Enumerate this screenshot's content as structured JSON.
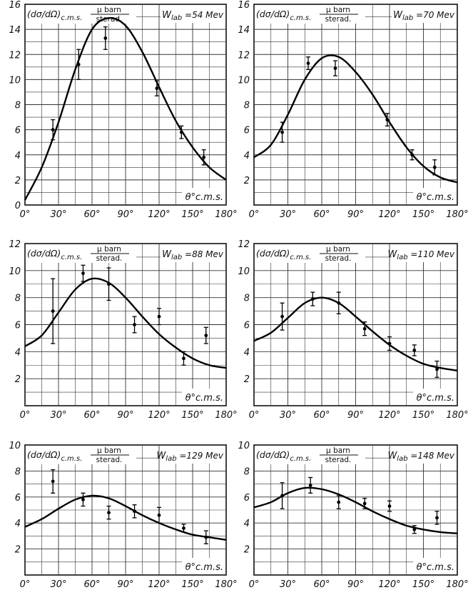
{
  "chart_data": [
    {
      "type": "scatter",
      "energy_label": "W",
      "energy_sub": "lab",
      "energy_value": "=54 Mev",
      "ylabel_prefix": "(dσ/dΩ)",
      "ylabel_sub": "c.m.s.",
      "unit_num": "μ barn",
      "unit_den": "sterad.",
      "xlabel": "θ°c.m.s.",
      "xlim": [
        0,
        180
      ],
      "ylim": [
        0,
        16
      ],
      "xticks": [
        0,
        30,
        60,
        90,
        120,
        150,
        180
      ],
      "xtick_labels": [
        "0°",
        "30°",
        "60°",
        "90°",
        "120°",
        "150°",
        "180°"
      ],
      "yticks": [
        0,
        2,
        4,
        6,
        8,
        10,
        12,
        14,
        16
      ],
      "grid": true,
      "points": [
        {
          "x": 25,
          "y": 6.0,
          "err": 0.8
        },
        {
          "x": 48,
          "y": 11.2,
          "err": 1.2
        },
        {
          "x": 72,
          "y": 13.3,
          "err": 0.9
        },
        {
          "x": 118,
          "y": 9.3,
          "err": 0.6
        },
        {
          "x": 140,
          "y": 5.8,
          "err": 0.5
        },
        {
          "x": 160,
          "y": 3.8,
          "err": 0.6
        }
      ],
      "curve": {
        "x": [
          0,
          15,
          30,
          45,
          60,
          75,
          90,
          105,
          120,
          135,
          150,
          165,
          180
        ],
        "y": [
          0.4,
          3.0,
          6.6,
          10.8,
          14.0,
          14.9,
          14.3,
          12.2,
          9.4,
          6.7,
          4.6,
          3.0,
          2.0
        ]
      }
    },
    {
      "type": "scatter",
      "energy_label": "W",
      "energy_sub": "lab",
      "energy_value": "=70 Mev",
      "ylabel_prefix": "(dσ/dΩ)",
      "ylabel_sub": "c.m.s.",
      "unit_num": "μ barn",
      "unit_den": "sterad.",
      "xlabel": "θ°c.m.s.",
      "xlim": [
        0,
        180
      ],
      "ylim": [
        0,
        16
      ],
      "xticks": [
        0,
        30,
        60,
        90,
        120,
        150,
        180
      ],
      "xtick_labels": [
        "0°",
        "30°",
        "60°",
        "90°",
        "120°",
        "150°",
        "180°"
      ],
      "yticks": [
        2,
        4,
        6,
        8,
        10,
        12,
        14,
        16
      ],
      "grid": true,
      "points": [
        {
          "x": 25,
          "y": 5.8,
          "err": 0.8
        },
        {
          "x": 48,
          "y": 11.3,
          "err": 0.5
        },
        {
          "x": 72,
          "y": 10.9,
          "err": 0.6
        },
        {
          "x": 118,
          "y": 6.8,
          "err": 0.5
        },
        {
          "x": 140,
          "y": 4.0,
          "err": 0.4
        },
        {
          "x": 160,
          "y": 3.0,
          "err": 0.6
        }
      ],
      "curve": {
        "x": [
          0,
          15,
          30,
          45,
          60,
          75,
          90,
          105,
          120,
          135,
          150,
          165,
          180
        ],
        "y": [
          3.8,
          4.8,
          7.2,
          10.0,
          11.7,
          11.8,
          10.6,
          8.8,
          6.6,
          4.6,
          3.1,
          2.2,
          1.8
        ]
      }
    },
    {
      "type": "scatter",
      "energy_label": "W",
      "energy_sub": "lab",
      "energy_value": "=88 Mev",
      "ylabel_prefix": "(dσ/dΩ)",
      "ylabel_sub": "c.m.s.",
      "unit_num": "μ barn",
      "unit_den": "sterad.",
      "xlabel": "θ°c.m.s.",
      "xlim": [
        0,
        180
      ],
      "ylim": [
        0,
        12
      ],
      "xticks": [
        0,
        30,
        60,
        90,
        120,
        150,
        180
      ],
      "xtick_labels": [
        "0°",
        "30°",
        "60°",
        "90°",
        "120°",
        "150°",
        "180°"
      ],
      "yticks": [
        2,
        4,
        6,
        8,
        10,
        12
      ],
      "grid": true,
      "points": [
        {
          "x": 25,
          "y": 7.0,
          "err": 2.4
        },
        {
          "x": 52,
          "y": 9.8,
          "err": 0.6
        },
        {
          "x": 75,
          "y": 9.0,
          "err": 1.2
        },
        {
          "x": 98,
          "y": 6.0,
          "err": 0.6
        },
        {
          "x": 120,
          "y": 6.6,
          "err": 0.6
        },
        {
          "x": 142,
          "y": 3.5,
          "err": 0.5
        },
        {
          "x": 162,
          "y": 5.2,
          "err": 0.6
        }
      ],
      "curve": {
        "x": [
          0,
          15,
          30,
          45,
          60,
          75,
          90,
          105,
          120,
          135,
          150,
          165,
          180
        ],
        "y": [
          4.4,
          5.2,
          6.9,
          8.6,
          9.4,
          9.1,
          8.0,
          6.6,
          5.3,
          4.3,
          3.5,
          3.0,
          2.8
        ]
      }
    },
    {
      "type": "scatter",
      "energy_label": "W",
      "energy_sub": "lab",
      "energy_value": "=110 Mev",
      "ylabel_prefix": "(dσ/dΩ)",
      "ylabel_sub": "c.m.s.",
      "unit_num": "μ barn",
      "unit_den": "sterad.",
      "xlabel": "θ°c.m.s.",
      "xlim": [
        0,
        180
      ],
      "ylim": [
        0,
        12
      ],
      "xticks": [
        0,
        30,
        60,
        90,
        120,
        150,
        180
      ],
      "xtick_labels": [
        "0°",
        "30°",
        "60°",
        "90°",
        "120°",
        "150°",
        "180°"
      ],
      "yticks": [
        2,
        4,
        6,
        8,
        10,
        12
      ],
      "grid": true,
      "points": [
        {
          "x": 25,
          "y": 6.6,
          "err": 1.0
        },
        {
          "x": 52,
          "y": 7.9,
          "err": 0.5
        },
        {
          "x": 75,
          "y": 7.6,
          "err": 0.8
        },
        {
          "x": 98,
          "y": 5.7,
          "err": 0.5
        },
        {
          "x": 120,
          "y": 4.6,
          "err": 0.5
        },
        {
          "x": 142,
          "y": 4.1,
          "err": 0.4
        },
        {
          "x": 162,
          "y": 2.7,
          "err": 0.6
        }
      ],
      "curve": {
        "x": [
          0,
          15,
          30,
          45,
          60,
          75,
          90,
          105,
          120,
          135,
          150,
          165,
          180
        ],
        "y": [
          4.8,
          5.4,
          6.5,
          7.6,
          8.0,
          7.6,
          6.6,
          5.5,
          4.5,
          3.7,
          3.1,
          2.8,
          2.6
        ]
      }
    },
    {
      "type": "scatter",
      "energy_label": "W",
      "energy_sub": "lab",
      "energy_value": "=129 Mev",
      "ylabel_prefix": "(dσ/dΩ)",
      "ylabel_sub": "c.m.s.",
      "unit_num": "μ barn",
      "unit_den": "sterad.",
      "xlabel": "θ°c.m.s.",
      "xlim": [
        0,
        180
      ],
      "ylim": [
        0,
        10
      ],
      "xticks": [
        0,
        30,
        60,
        90,
        120,
        150,
        180
      ],
      "xtick_labels": [
        "0°",
        "30°",
        "60°",
        "90°",
        "120°",
        "150°",
        "180°"
      ],
      "yticks": [
        2,
        4,
        6,
        8,
        10
      ],
      "grid": true,
      "points": [
        {
          "x": 25,
          "y": 7.2,
          "err": 0.9
        },
        {
          "x": 52,
          "y": 5.8,
          "err": 0.5
        },
        {
          "x": 75,
          "y": 4.8,
          "err": 0.5
        },
        {
          "x": 98,
          "y": 4.9,
          "err": 0.5
        },
        {
          "x": 120,
          "y": 4.6,
          "err": 0.6
        },
        {
          "x": 142,
          "y": 3.6,
          "err": 0.3
        },
        {
          "x": 162,
          "y": 2.9,
          "err": 0.5
        }
      ],
      "curve": {
        "x": [
          0,
          15,
          30,
          45,
          60,
          75,
          90,
          105,
          120,
          135,
          150,
          165,
          180
        ],
        "y": [
          3.7,
          4.3,
          5.1,
          5.8,
          6.1,
          5.9,
          5.3,
          4.6,
          4.0,
          3.5,
          3.1,
          2.9,
          2.7
        ]
      }
    },
    {
      "type": "scatter",
      "energy_label": "W",
      "energy_sub": "lab",
      "energy_value": "=148 Mev",
      "ylabel_prefix": "(dσ/dΩ)",
      "ylabel_sub": "c.m.s.",
      "unit_num": "μ barn",
      "unit_den": "sterad.",
      "xlabel": "θ°c.m.s.",
      "xlim": [
        0,
        180
      ],
      "ylim": [
        0,
        10
      ],
      "xticks": [
        0,
        30,
        60,
        90,
        120,
        150,
        180
      ],
      "xtick_labels": [
        "0°",
        "30°",
        "60°",
        "90°",
        "120°",
        "150°",
        "180°"
      ],
      "yticks": [
        2,
        4,
        6,
        8,
        10
      ],
      "grid": true,
      "points": [
        {
          "x": 25,
          "y": 6.1,
          "err": 1.0
        },
        {
          "x": 50,
          "y": 6.9,
          "err": 0.6
        },
        {
          "x": 75,
          "y": 5.6,
          "err": 0.5
        },
        {
          "x": 98,
          "y": 5.5,
          "err": 0.4
        },
        {
          "x": 120,
          "y": 5.3,
          "err": 0.4
        },
        {
          "x": 142,
          "y": 3.5,
          "err": 0.3
        },
        {
          "x": 162,
          "y": 4.4,
          "err": 0.5
        }
      ],
      "curve": {
        "x": [
          0,
          15,
          30,
          45,
          60,
          75,
          90,
          105,
          120,
          135,
          150,
          165,
          180
        ],
        "y": [
          5.2,
          5.6,
          6.3,
          6.7,
          6.6,
          6.2,
          5.6,
          4.9,
          4.3,
          3.8,
          3.5,
          3.3,
          3.2
        ]
      }
    }
  ]
}
